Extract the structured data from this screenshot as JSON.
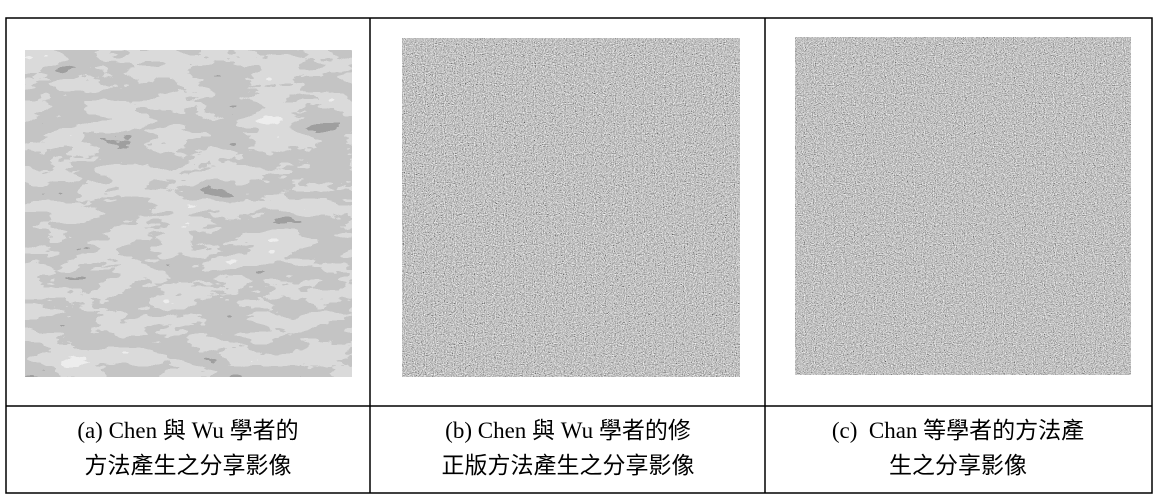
{
  "table": {
    "cells": [
      {
        "caption": [
          "(a) Chen 與 Wu 學者的",
          "方法產生之分享影像"
        ]
      },
      {
        "caption": [
          "(b) Chen 與 Wu 學者的修",
          "正版方法產生之分享影像"
        ]
      },
      {
        "caption": [
          "(c)  Chan 等學者的方法產",
          "生之分享影像"
        ]
      }
    ]
  }
}
